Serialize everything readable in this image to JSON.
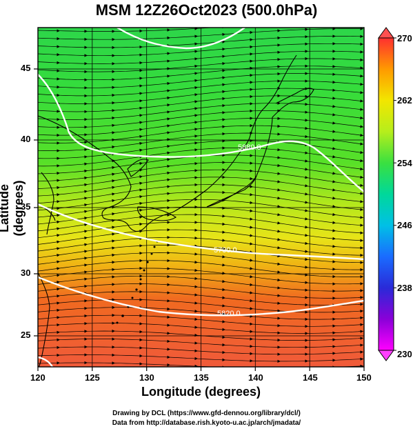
{
  "title": "MSM 12Z26Oct2023 (500.0hPa)",
  "axes": {
    "x_label": "Longitude (degrees)",
    "y_label": "Latitude  (degrees)",
    "x_ticks": [
      "120",
      "125",
      "130",
      "135",
      "140",
      "145",
      "150"
    ],
    "y_ticks": [
      "45",
      "40",
      "35",
      "30",
      "25"
    ]
  },
  "colorbar": {
    "labels": [
      "270",
      "262",
      "254",
      "246",
      "238",
      "230"
    ],
    "stops": [
      "#ff3030",
      "#ff9a00",
      "#f2e600",
      "#b6ee1c",
      "#3ae040",
      "#00d89a",
      "#00c0e6",
      "#1a6cff",
      "#2a2ad8",
      "#8a00d8",
      "#ff00ff"
    ]
  },
  "contours": [
    {
      "label": "5820.0"
    },
    {
      "label": "5880.0"
    },
    {
      "label": "5700.0"
    },
    {
      "label": "5820.0"
    },
    {
      "label": "5880.0"
    }
  ],
  "credits": {
    "line1": "Drawing by DCL (https://www.gfd-dennou.org/library/dcl/)",
    "line2": "Data from http://database.rish.kyoto-u.ac.jp/arch/jmadata/"
  }
}
